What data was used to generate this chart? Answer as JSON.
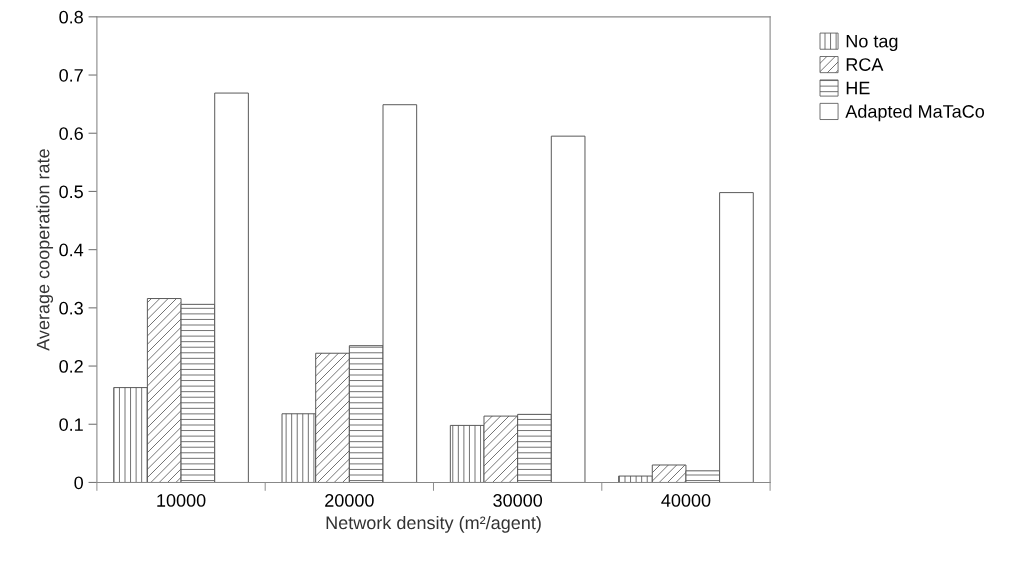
{
  "chart_data": {
    "type": "bar",
    "xlabel": "Network density (m²/agent)",
    "ylabel": "Average cooperation rate",
    "categories": [
      "10000",
      "20000",
      "30000",
      "40000"
    ],
    "series": [
      {
        "name": "No tag",
        "color": "#555555",
        "values": [
          0.163,
          0.118,
          0.098,
          0.011
        ]
      },
      {
        "name": "RCA",
        "color": "#555555",
        "values": [
          0.316,
          0.222,
          0.114,
          0.03
        ]
      },
      {
        "name": "HE",
        "color": "#555555",
        "values": [
          0.306,
          0.235,
          0.117,
          0.02
        ]
      },
      {
        "name": "Adapted MaTaCo",
        "color": "#ffffff",
        "values": [
          0.669,
          0.649,
          0.595,
          0.498
        ]
      }
    ],
    "ylim": [
      0,
      0.8
    ],
    "yticks": [
      {
        "value": 0,
        "label": "0"
      },
      0.1,
      0.2,
      0.3,
      0.4,
      0.5,
      0.6,
      0.7,
      0.8
    ],
    "grid": false,
    "legend": "top right"
  }
}
